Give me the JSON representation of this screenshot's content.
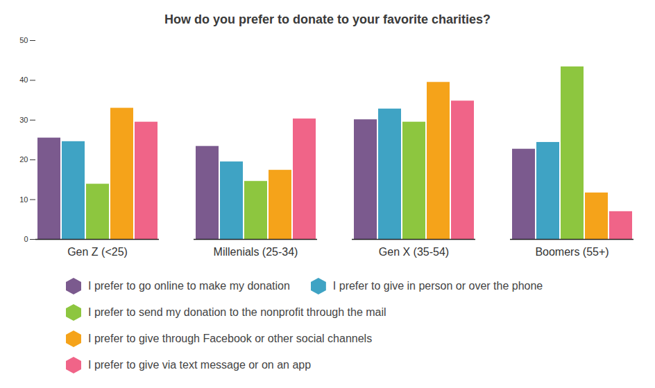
{
  "chart_data": {
    "type": "bar",
    "title": "How do you prefer to donate to your favorite charities?",
    "categories": [
      "Gen Z (<25)",
      "Millenials (25-34)",
      "Gen X (35-54)",
      "Boomers (55+)"
    ],
    "series": [
      {
        "name": "I prefer to go online to make my donation",
        "color": "#7b5a8e",
        "values": [
          25.5,
          23.4,
          30.1,
          22.7
        ]
      },
      {
        "name": "I prefer to give in person or over the phone",
        "color": "#3fa3c4",
        "values": [
          24.6,
          19.5,
          32.8,
          24.4
        ]
      },
      {
        "name": "I prefer to send my donation to the nonprofit through the mail",
        "color": "#8dc63f",
        "values": [
          13.9,
          14.6,
          29.5,
          43.4
        ]
      },
      {
        "name": "I prefer to give through Facebook or other social channels",
        "color": "#f5a31a",
        "values": [
          33.0,
          17.4,
          39.5,
          11.7
        ]
      },
      {
        "name": "I prefer to give via text message or on an app",
        "color": "#f06488",
        "values": [
          29.5,
          30.3,
          34.8,
          7.0
        ]
      }
    ],
    "ylim": [
      0,
      50
    ],
    "yticks": [
      0,
      10,
      20,
      30,
      40,
      50
    ],
    "grid": false,
    "legend": "bottom"
  }
}
